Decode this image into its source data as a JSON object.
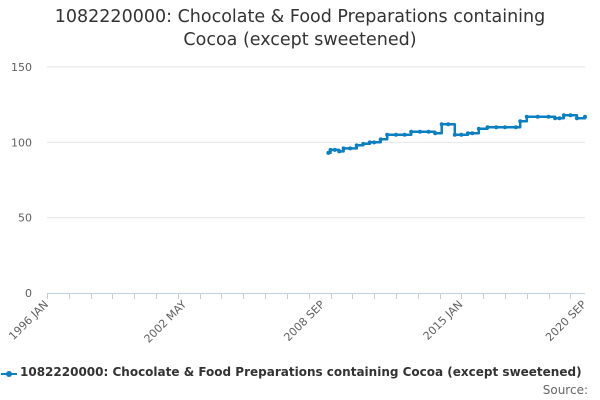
{
  "chart_data": {
    "type": "line",
    "title": "1082220000: Chocolate & Food Preparations containing Cocoa (except sweetened)",
    "title_lines": [
      "1082220000: Chocolate & Food Preparations containing",
      "Cocoa (except sweetened)"
    ],
    "xlabel": "",
    "ylabel": "",
    "x_range": [
      1996.0,
      2020.67
    ],
    "ylim": [
      0,
      150
    ],
    "y_ticks": [
      "0",
      "50",
      "100",
      "150"
    ],
    "x_tick_labels": [
      "1996 JAN",
      "2002 MAY",
      "2008 SEP",
      "2015 JAN",
      "2020 SEP"
    ],
    "x_tick_positions": [
      1996.0,
      2002.33,
      2008.67,
      2015.0,
      2020.67
    ],
    "grid": true,
    "legend_position": "bottom",
    "series": [
      {
        "name": "1082220000: Chocolate & Food Preparations containing Cocoa (except sweetened)",
        "color": "#0b7fc1",
        "x": [
          2008.9,
          2009.0,
          2009.2,
          2009.4,
          2009.6,
          2009.9,
          2010.2,
          2010.5,
          2010.8,
          2011.0,
          2011.3,
          2011.6,
          2012.0,
          2012.4,
          2012.7,
          2013.1,
          2013.5,
          2013.8,
          2014.1,
          2014.4,
          2014.7,
          2015.0,
          2015.3,
          2015.5,
          2015.8,
          2016.2,
          2016.6,
          2017.0,
          2017.5,
          2017.7,
          2018.0,
          2018.5,
          2019.0,
          2019.3,
          2019.5,
          2019.7,
          2020.0,
          2020.3,
          2020.67
        ],
        "values": [
          93,
          95,
          95,
          94,
          96,
          96,
          98,
          99,
          100,
          100,
          102,
          105,
          105,
          105,
          107,
          107,
          107,
          106,
          112,
          112,
          105,
          105,
          106,
          106,
          109,
          110,
          110,
          110,
          110,
          114,
          117,
          117,
          117,
          116,
          116,
          118,
          118,
          116,
          117
        ]
      }
    ],
    "source_label": "Source:"
  }
}
